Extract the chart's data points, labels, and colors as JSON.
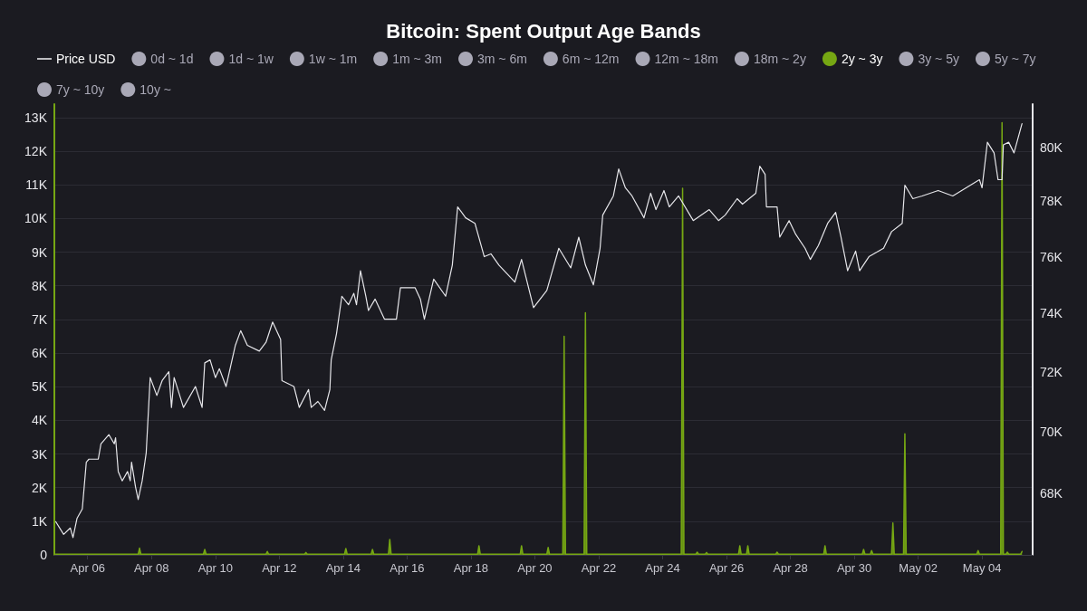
{
  "chart_data": {
    "type": "line",
    "title": "Bitcoin: Spent Output Age Bands",
    "legend": "top",
    "grid": "y",
    "log": "y2",
    "xlim": [
      "--04-04T23:00",
      "--05-05T14:00"
    ],
    "xticks": [
      {
        "value": "--04-06",
        "label": "Apr 06"
      },
      {
        "value": "--04-08",
        "label": "Apr 08"
      },
      {
        "value": "--04-10",
        "label": "Apr 10"
      },
      {
        "value": "--04-12",
        "label": "Apr 12"
      },
      {
        "value": "--04-14",
        "label": "Apr 14"
      },
      {
        "value": "--04-16",
        "label": "Apr 16"
      },
      {
        "value": "--04-18",
        "label": "Apr 18"
      },
      {
        "value": "--04-20",
        "label": "Apr 20"
      },
      {
        "value": "--04-22",
        "label": "Apr 22"
      },
      {
        "value": "--04-24",
        "label": "Apr 24"
      },
      {
        "value": "--04-26",
        "label": "Apr 26"
      },
      {
        "value": "--04-28",
        "label": "Apr 28"
      },
      {
        "value": "--04-30",
        "label": "Apr 30"
      },
      {
        "value": "--05-02",
        "label": "May 02"
      },
      {
        "value": "--05-04",
        "label": "May 04"
      }
    ],
    "ylim": [
      0,
      13400
    ],
    "yticks": [
      {
        "value": 0,
        "label": "0"
      },
      {
        "value": 1000,
        "label": "1K"
      },
      {
        "value": 2000,
        "label": "2K"
      },
      {
        "value": 3000,
        "label": "3K"
      },
      {
        "value": 4000,
        "label": "4K"
      },
      {
        "value": 5000,
        "label": "5K"
      },
      {
        "value": 6000,
        "label": "6K"
      },
      {
        "value": 7000,
        "label": "7K"
      },
      {
        "value": 8000,
        "label": "8K"
      },
      {
        "value": 9000,
        "label": "9K"
      },
      {
        "value": 10000,
        "label": "10K"
      },
      {
        "value": 11000,
        "label": "11K"
      },
      {
        "value": 12000,
        "label": "12K"
      },
      {
        "value": 13000,
        "label": "13K"
      }
    ],
    "y2lim": [
      66060,
      81650
    ],
    "y2ticks": [
      {
        "value": 68000,
        "label": "68K"
      },
      {
        "value": 70000,
        "label": "70K"
      },
      {
        "value": 72000,
        "label": "72K"
      },
      {
        "value": 74000,
        "label": "74K"
      },
      {
        "value": 76000,
        "label": "76K"
      },
      {
        "value": 78000,
        "label": "78K"
      },
      {
        "value": 80000,
        "label": "80K"
      }
    ],
    "series": [
      {
        "name": "Price USD",
        "type": "line",
        "axis": "y2",
        "color": "#e6e6ea",
        "marker": "none",
        "line_style": "solid",
        "x": [
          "--04-05T00:00",
          "--04-05T06:00",
          "--04-05T11:00",
          "--04-05T13:00",
          "--04-05T16:00",
          "--04-05T20:00",
          "--04-05T23:00",
          "--04-06T01:00",
          "--04-06T08:00",
          "--04-06T10:00",
          "--04-06T16:00",
          "--04-06T20:00",
          "--04-06T21:00",
          "--04-06T23:00",
          "--04-07T02:00",
          "--04-07T06:00",
          "--04-07T08:00",
          "--04-07T09:00",
          "--04-07T12:00",
          "--04-07T14:00",
          "--04-07T17:00",
          "--04-07T20:00",
          "--04-07T23:00",
          "--04-08T04:00",
          "--04-08T08:00",
          "--04-08T13:00",
          "--04-08T15:00",
          "--04-08T17:00",
          "--04-09T00:00",
          "--04-09T09:00",
          "--04-09T14:00",
          "--04-09T16:00",
          "--04-09T20:00",
          "--04-10T00:00",
          "--04-10T03:00",
          "--04-10T08:00",
          "--04-10T15:00",
          "--04-10T19:00",
          "--04-11T00:00",
          "--04-11T09:00",
          "--04-11T14:00",
          "--04-11T19:00",
          "--04-12T01:00",
          "--04-12T02:00",
          "--04-12T11:00",
          "--04-12T15:00",
          "--04-12T22:00",
          "--04-13T00:00",
          "--04-13T05:00",
          "--04-13T10:00",
          "--04-13T14:00",
          "--04-13T15:00",
          "--04-13T19:00",
          "--04-13T23:00",
          "--04-14T04:00",
          "--04-14T08:00",
          "--04-14T10:00",
          "--04-14T13:00",
          "--04-14T17:00",
          "--04-14T19:00",
          "--04-15T00:00",
          "--04-15T07:00",
          "--04-15T16:00",
          "--04-15T19:00",
          "--04-16T06:00",
          "--04-16T10:00",
          "--04-16T13:00",
          "--04-16T20:00",
          "--04-17T05:00",
          "--04-17T10:00",
          "--04-17T14:00",
          "--04-17T20:00",
          "--04-18T03:00",
          "--04-18T10:00",
          "--04-18T15:00",
          "--04-18T21:00",
          "--04-19T09:00",
          "--04-19T14:00",
          "--04-19T23:00",
          "--04-20T04:00",
          "--04-20T09:00",
          "--04-20T18:00",
          "--04-21T03:00",
          "--04-21T09:00",
          "--04-21T14:00",
          "--04-21T20:00",
          "--04-22T01:00",
          "--04-22T03:00",
          "--04-22T11:00",
          "--04-22T15:00",
          "--04-22T20:00",
          "--04-23T01:00",
          "--04-23T10:00",
          "--04-23T15:00",
          "--04-23T19:00",
          "--04-24T01:00",
          "--04-24T05:00",
          "--04-24T12:00",
          "--04-24T23:00",
          "--04-25T11:00",
          "--04-25T18:00",
          "--04-25T23:00",
          "--04-26T08:00",
          "--04-26T12:00",
          "--04-26T22:00",
          "--04-27T01:00",
          "--04-27T05:00",
          "--04-27T06:00",
          "--04-27T14:00",
          "--04-27T16:00",
          "--04-27T23:00",
          "--04-28T04:00",
          "--04-28T11:00",
          "--04-28T15:00",
          "--04-28T21:00",
          "--04-29T04:00",
          "--04-29T10:00",
          "--04-29T14:00",
          "--04-29T19:00",
          "--04-30T01:00",
          "--04-30T04:00",
          "--04-30T11:00",
          "--04-30T22:00",
          "--05-01T04:00",
          "--05-01T12:00",
          "--05-01T14:00",
          "--05-01T20:00",
          "--05-02T03:00",
          "--05-02T15:00",
          "--05-03T02:00",
          "--05-03T12:00",
          "--05-03T22:00",
          "--05-04T00:00",
          "--05-04T04:00",
          "--05-04T09:00",
          "--05-04T12:00",
          "--05-04T15:00",
          "--05-04T16:00",
          "--05-04T20:00",
          "--05-05T00:00",
          "--05-05T06:00"
        ],
        "values": [
          67100,
          66700,
          66900,
          66600,
          67200,
          67500,
          69000,
          69100,
          69100,
          69600,
          69900,
          69600,
          69800,
          68700,
          68400,
          68700,
          68400,
          69000,
          68200,
          67800,
          68400,
          69300,
          71800,
          71200,
          71700,
          72000,
          70800,
          71800,
          70800,
          71500,
          70800,
          72300,
          72400,
          71800,
          72100,
          71500,
          72900,
          73400,
          72900,
          72700,
          73000,
          73700,
          73100,
          71700,
          71500,
          70800,
          71400,
          70800,
          71000,
          70700,
          71400,
          72400,
          73300,
          74600,
          74300,
          74700,
          74300,
          75500,
          74600,
          74100,
          74500,
          73800,
          73800,
          74900,
          74900,
          74500,
          73800,
          75200,
          74600,
          75700,
          77800,
          77400,
          77200,
          76000,
          76100,
          75700,
          75100,
          75900,
          74200,
          74500,
          74800,
          76300,
          75600,
          76700,
          75700,
          75000,
          76300,
          77500,
          78200,
          79200,
          78500,
          78200,
          77400,
          78300,
          77700,
          78400,
          77800,
          78200,
          77300,
          77700,
          77300,
          77500,
          78100,
          77900,
          78300,
          79300,
          79000,
          77800,
          77800,
          76700,
          77300,
          76800,
          76300,
          75900,
          76400,
          77200,
          77600,
          76700,
          75500,
          76200,
          75500,
          76000,
          76300,
          76900,
          77200,
          78600,
          78100,
          78200,
          78400,
          78200,
          78500,
          78800,
          78500,
          80200,
          79800,
          78800,
          78800,
          80100,
          80200,
          79800,
          80900
        ]
      },
      {
        "name": "0d ~ 1d",
        "color": "#a9a8b6"
      },
      {
        "name": "1d ~ 1w",
        "color": "#a9a8b6"
      },
      {
        "name": "1w ~ 1m",
        "color": "#a9a8b6"
      },
      {
        "name": "1m ~ 3m",
        "color": "#a9a8b6"
      },
      {
        "name": "3m ~ 6m",
        "color": "#a9a8b6"
      },
      {
        "name": "6m ~ 12m",
        "color": "#a9a8b6"
      },
      {
        "name": "12m ~ 18m",
        "color": "#a9a8b6"
      },
      {
        "name": "18m ~ 2y",
        "color": "#a9a8b6"
      },
      {
        "name": "2y ~ 3y",
        "type": "area",
        "color": "#76a713",
        "x": [
          "--04-05T00:00",
          "--04-07T14:00",
          "--04-07T15:00",
          "--04-07T16:00",
          "--04-09T15:00",
          "--04-09T16:00",
          "--04-09T17:00",
          "--04-11T14:00",
          "--04-11T15:00",
          "--04-11T16:00",
          "--04-12T19:00",
          "--04-12T20:00",
          "--04-12T21:00",
          "--04-14T01:00",
          "--04-14T02:00",
          "--04-14T03:00",
          "--04-14T21:00",
          "--04-14T22:00",
          "--04-14T23:00",
          "--04-15T10:00",
          "--04-15T11:00",
          "--04-15T12:00",
          "--04-18T05:00",
          "--04-18T06:00",
          "--04-18T07:00",
          "--04-19T13:00",
          "--04-19T14:00",
          "--04-19T15:00",
          "--04-20T09:00",
          "--04-20T10:00",
          "--04-20T11:00",
          "--04-20T21:00",
          "--04-20T22:00",
          "--04-20T23:00",
          "--04-21T13:00",
          "--04-21T14:00",
          "--04-21T15:00",
          "--04-24T14:00",
          "--04-24T15:00",
          "--04-24T16:00",
          "--04-25T01:00",
          "--04-25T02:00",
          "--04-25T03:00",
          "--04-25T08:00",
          "--04-25T09:00",
          "--04-25T10:00",
          "--04-26T09:00",
          "--04-26T10:00",
          "--04-26T11:00",
          "--04-26T15:00",
          "--04-26T16:00",
          "--04-26T17:00",
          "--04-27T13:00",
          "--04-27T14:00",
          "--04-27T15:00",
          "--04-29T01:00",
          "--04-29T02:00",
          "--04-29T03:00",
          "--04-30T06:00",
          "--04-30T07:00",
          "--04-30T08:00",
          "--04-30T12:00",
          "--04-30T13:00",
          "--04-30T14:00",
          "--05-01T04:00",
          "--05-01T05:00",
          "--05-01T06:00",
          "--05-01T13:00",
          "--05-01T14:00",
          "--05-01T15:00",
          "--05-03T20:00",
          "--05-03T21:00",
          "--05-03T22:00",
          "--05-04T14:00",
          "--05-04T15:00",
          "--05-04T16:00",
          "--05-04T18:00",
          "--05-04T19:00",
          "--05-04T20:00",
          "--05-05T05:00",
          "--05-05T06:00"
        ],
        "values": [
          20,
          20,
          200,
          20,
          20,
          160,
          20,
          20,
          100,
          20,
          20,
          70,
          20,
          20,
          190,
          20,
          20,
          160,
          20,
          20,
          460,
          20,
          20,
          270,
          20,
          20,
          270,
          20,
          20,
          220,
          20,
          20,
          6500,
          20,
          20,
          7200,
          20,
          20,
          10900,
          20,
          20,
          80,
          20,
          20,
          70,
          20,
          20,
          270,
          20,
          20,
          270,
          20,
          20,
          80,
          20,
          20,
          270,
          20,
          20,
          160,
          20,
          20,
          130,
          20,
          20,
          950,
          20,
          20,
          3600,
          20,
          20,
          130,
          20,
          20,
          12850,
          20,
          20,
          80,
          20,
          20,
          100
        ]
      },
      {
        "name": "3y ~ 5y",
        "color": "#a9a8b6"
      },
      {
        "name": "5y ~ 7y",
        "color": "#a9a8b6"
      },
      {
        "name": "7y ~ 10y",
        "color": "#a9a8b6"
      },
      {
        "name": "10y ~",
        "color": "#a9a8b6"
      }
    ]
  }
}
